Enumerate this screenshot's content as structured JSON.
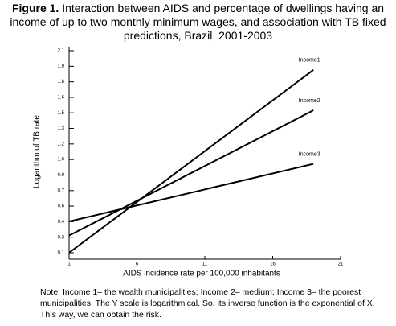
{
  "chart_data": {
    "type": "line",
    "title_label": "Figure 1.",
    "title": "Interaction between AIDS and percentage of dwellings having an income of up to two monthly minimum wages, and association with TB fixed predictions, Brazil, 2001-2003",
    "x_label": "AIDS incidence rate per 100,000 inhabitants",
    "y_label": "Logarithm of TB rate",
    "x": [
      1,
      19
    ],
    "series": [
      {
        "name": "Income1",
        "color": "#000000",
        "values": [
          0.1,
          1.91
        ]
      },
      {
        "name": "Income2",
        "color": "#000000",
        "values": [
          0.27,
          1.51
        ]
      },
      {
        "name": "Income3",
        "color": "#000000",
        "values": [
          0.41,
          0.98
        ]
      }
    ],
    "xlim": [
      1,
      21
    ],
    "xticks": [
      1,
      6,
      11,
      16,
      21
    ],
    "ylim": [
      0.1,
      2.1
    ],
    "yticks": [
      0.1,
      {
        "value": 0.254,
        "label": "0.3"
      },
      {
        "value": 0.408,
        "label": "0.4"
      },
      {
        "value": 0.562,
        "label": "0.6"
      },
      {
        "value": 0.715,
        "label": "0.7"
      },
      {
        "value": 0.869,
        "label": "0.9"
      },
      {
        "value": 1.023,
        "label": "1.0"
      },
      {
        "value": 1.177,
        "label": "1.2"
      },
      {
        "value": 1.331,
        "label": "1.3"
      },
      {
        "value": 1.485,
        "label": "1.5"
      },
      {
        "value": 1.638,
        "label": "1.6"
      },
      {
        "value": 1.792,
        "label": "1.8"
      },
      {
        "value": 1.946,
        "label": "1.9"
      },
      2.1
    ],
    "note": "Note: Income 1– the wealth municipalities; Income 2– medium; Income 3– the poorest municipalities. The Y scale is logarithmical. So, its inverse function is the exponential of X. This way, we can obtain the risk."
  }
}
